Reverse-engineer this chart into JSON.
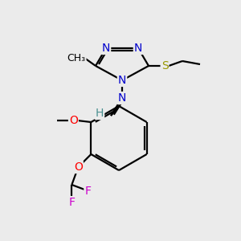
{
  "background_color": "#ebebeb",
  "bond_color": "#000000",
  "atom_colors": {
    "N": "#0000cc",
    "S": "#999900",
    "O": "#ff0000",
    "F": "#cc00cc",
    "H": "#4a8f8f",
    "C": "#000000"
  },
  "figsize": [
    3.0,
    3.0
  ],
  "dpi": 100,
  "lw": 1.6,
  "fs": 10,
  "fs_small": 9
}
